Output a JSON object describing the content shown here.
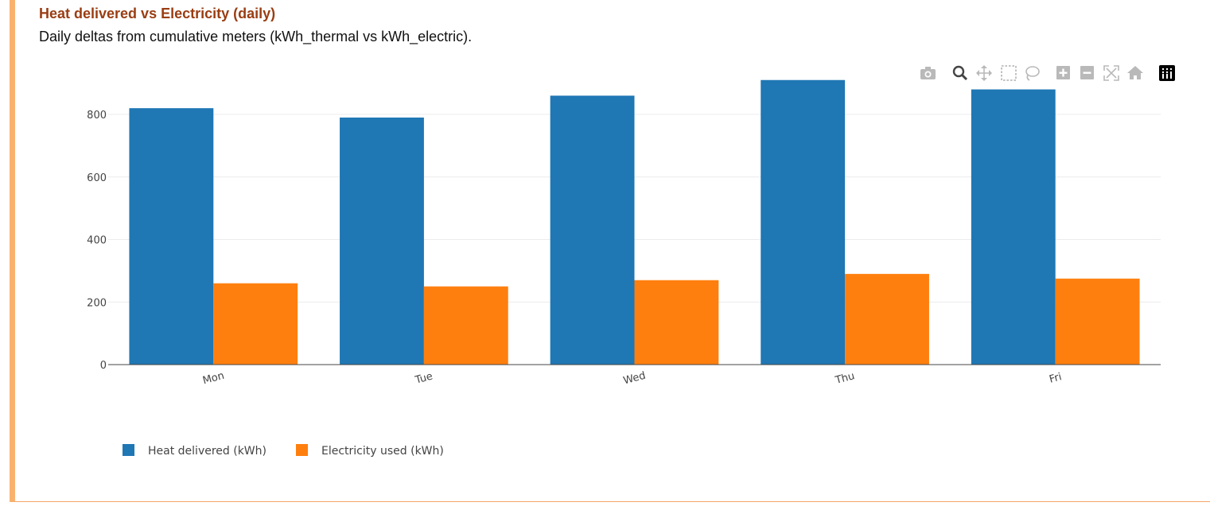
{
  "panel": {
    "title": "Heat delivered vs Electricity (daily)",
    "subtitle": "Daily deltas from cumulative meters (kWh_thermal vs kWh_electric)."
  },
  "modebar": {
    "buttons": [
      {
        "name": "camera-icon"
      },
      {
        "name": "zoom-icon"
      },
      {
        "name": "pan-icon"
      },
      {
        "name": "box-select-icon"
      },
      {
        "name": "lasso-select-icon"
      },
      {
        "name": "zoom-in-icon"
      },
      {
        "name": "zoom-out-icon"
      },
      {
        "name": "autoscale-icon"
      },
      {
        "name": "reset-axes-icon"
      },
      {
        "name": "plotly-logo-icon"
      }
    ]
  },
  "colors": {
    "heat": "#1f77b4",
    "electric": "#ff7f0e",
    "accent_border": "#f9b26e",
    "title": "#9a3d12"
  },
  "chart_data": {
    "type": "bar",
    "title": "",
    "xlabel": "",
    "ylabel": "",
    "categories": [
      "Mon",
      "Tue",
      "Wed",
      "Thu",
      "Fri"
    ],
    "series": [
      {
        "name": "Heat delivered (kWh)",
        "values": [
          820,
          790,
          860,
          910,
          880
        ]
      },
      {
        "name": "Electricity used (kWh)",
        "values": [
          260,
          250,
          270,
          290,
          275
        ]
      }
    ],
    "ylim": [
      0,
      950
    ],
    "yticks": [
      0,
      200,
      400,
      600,
      800
    ],
    "grid": true,
    "legend": "bottom-left"
  }
}
